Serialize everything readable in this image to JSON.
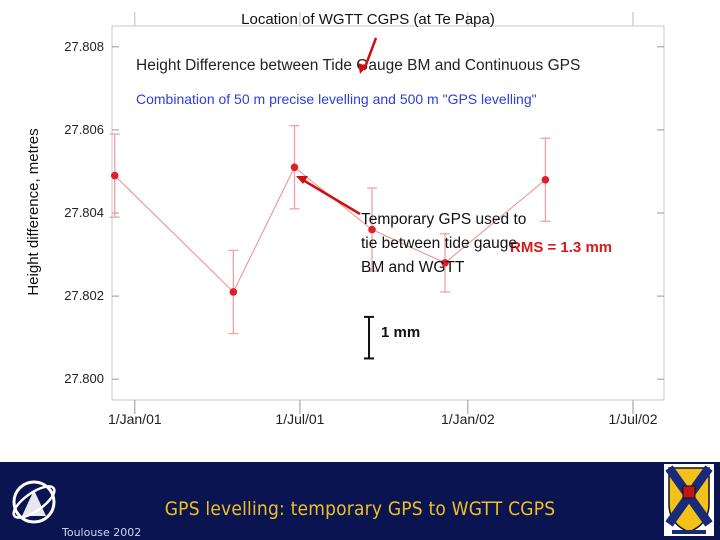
{
  "chart_data": {
    "type": "scatter",
    "title": "Height Difference between Tide Gauge BM and Continuous GPS",
    "subtitle": "Combination of 50 m precise levelling and 500 m \"GPS levelling\"",
    "xlabel": "",
    "ylabel": "Height difference, metres",
    "x_ticks": [
      "1/Jan/01",
      "1/Jul/01",
      "1/Jan/02",
      "1/Jul/02"
    ],
    "x_tick_values": [
      0,
      181,
      365,
      546
    ],
    "y_ticks": [
      "27.800",
      "27.802",
      "27.804",
      "27.806",
      "27.808"
    ],
    "ylim": [
      27.7995,
      27.8085
    ],
    "xlim": [
      -25,
      580
    ],
    "grid": false,
    "points": [
      {
        "x": -22,
        "y": 27.8049,
        "err": 0.001,
        "note": "left edge"
      },
      {
        "x": 108,
        "y": 27.8021,
        "err": 0.001
      },
      {
        "x": 175,
        "y": 27.8051,
        "err": 0.001
      },
      {
        "x": 260,
        "y": 27.8036,
        "err": 0.001
      },
      {
        "x": 340,
        "y": 27.8028,
        "err": 0.0007
      },
      {
        "x": 450,
        "y": 27.8048,
        "err": 0.001
      }
    ],
    "rms_label": "RMS = 1.3 mm",
    "scale_bar_label": "1 mm",
    "color": "#e0202a"
  },
  "annotations": {
    "location": "Location of WGTT CGPS (at Te Papa)",
    "temporary_line1": "Temporary GPS used to",
    "temporary_line2": "tie between tide gauge",
    "temporary_line3": "BM and WGTT"
  },
  "footer": {
    "title": "GPS levelling:  temporary GPS to WGTT CGPS",
    "conference": "Toulouse 2002",
    "bg_color": "#0a1450",
    "title_color": "#f0c020"
  }
}
